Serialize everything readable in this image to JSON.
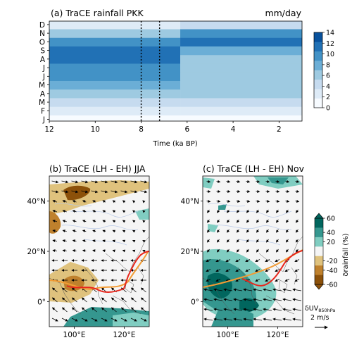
{
  "chart_data": [
    {
      "panel": "a",
      "type": "heatmap",
      "title": "(a) TraCE rainfall PKK",
      "units": "mm/day",
      "xlabel": "Time (ka BP)",
      "x_ticks": [
        12,
        10,
        8,
        6,
        4,
        2
      ],
      "xlim": [
        12,
        1
      ],
      "y_ticks": [
        "J",
        "F",
        "M",
        "A",
        "M",
        "J",
        "J",
        "A",
        "S",
        "O",
        "N",
        "D"
      ],
      "reference_lines_ka": [
        8.0,
        7.2
      ],
      "colorbar": {
        "ticks": [
          0,
          2,
          4,
          6,
          8,
          10,
          12,
          14
        ],
        "range": [
          0,
          14
        ]
      },
      "values_note": "monthly rainfall (mm/day) before and after the ~6.3 ka transition",
      "monthly_early": [
        1,
        3,
        5,
        6,
        8,
        10,
        11,
        12,
        12,
        11,
        7,
        3
      ],
      "monthly_late": [
        1,
        3,
        5,
        6,
        6,
        6,
        6,
        6,
        9,
        12,
        11,
        5
      ]
    },
    {
      "panel": "b",
      "type": "map",
      "title": "(b) TraCE (LH - EH) JJA",
      "x_ticks": [
        "100°E",
        "120°E"
      ],
      "y_ticks": [
        "0°",
        "20°N",
        "40°N"
      ],
      "lon_range": [
        90,
        130
      ],
      "lat_range": [
        -10,
        50
      ]
    },
    {
      "panel": "c",
      "type": "map",
      "title": "(c) TraCE (LH - EH) Nov",
      "x_ticks": [
        "100°E",
        "120°E"
      ],
      "y_ticks": [
        "0°",
        "20°N",
        "40°N"
      ],
      "lon_range": [
        90,
        130
      ],
      "lat_range": [
        -10,
        50
      ]
    }
  ],
  "colorbar_b": {
    "label": "δrainfall (%)",
    "ticks": [
      60,
      40,
      20,
      -20,
      -40,
      -60
    ],
    "colors": [
      "#01665e",
      "#35978f",
      "#80cdc1",
      "#f5f5f5",
      "#dfc27d",
      "#bf812d",
      "#8c510a"
    ]
  },
  "wind_legend": {
    "label": "δUV",
    "subscript": "850hPa",
    "scale": "2 m/s"
  },
  "colors": {
    "blue_scale": [
      "#f7fbff",
      "#deebf7",
      "#c6dbef",
      "#9ecae1",
      "#6baed6",
      "#4292c6",
      "#2171b5",
      "#08519c"
    ],
    "red_line": "#e8261c",
    "orange_line": "#f39c34"
  }
}
